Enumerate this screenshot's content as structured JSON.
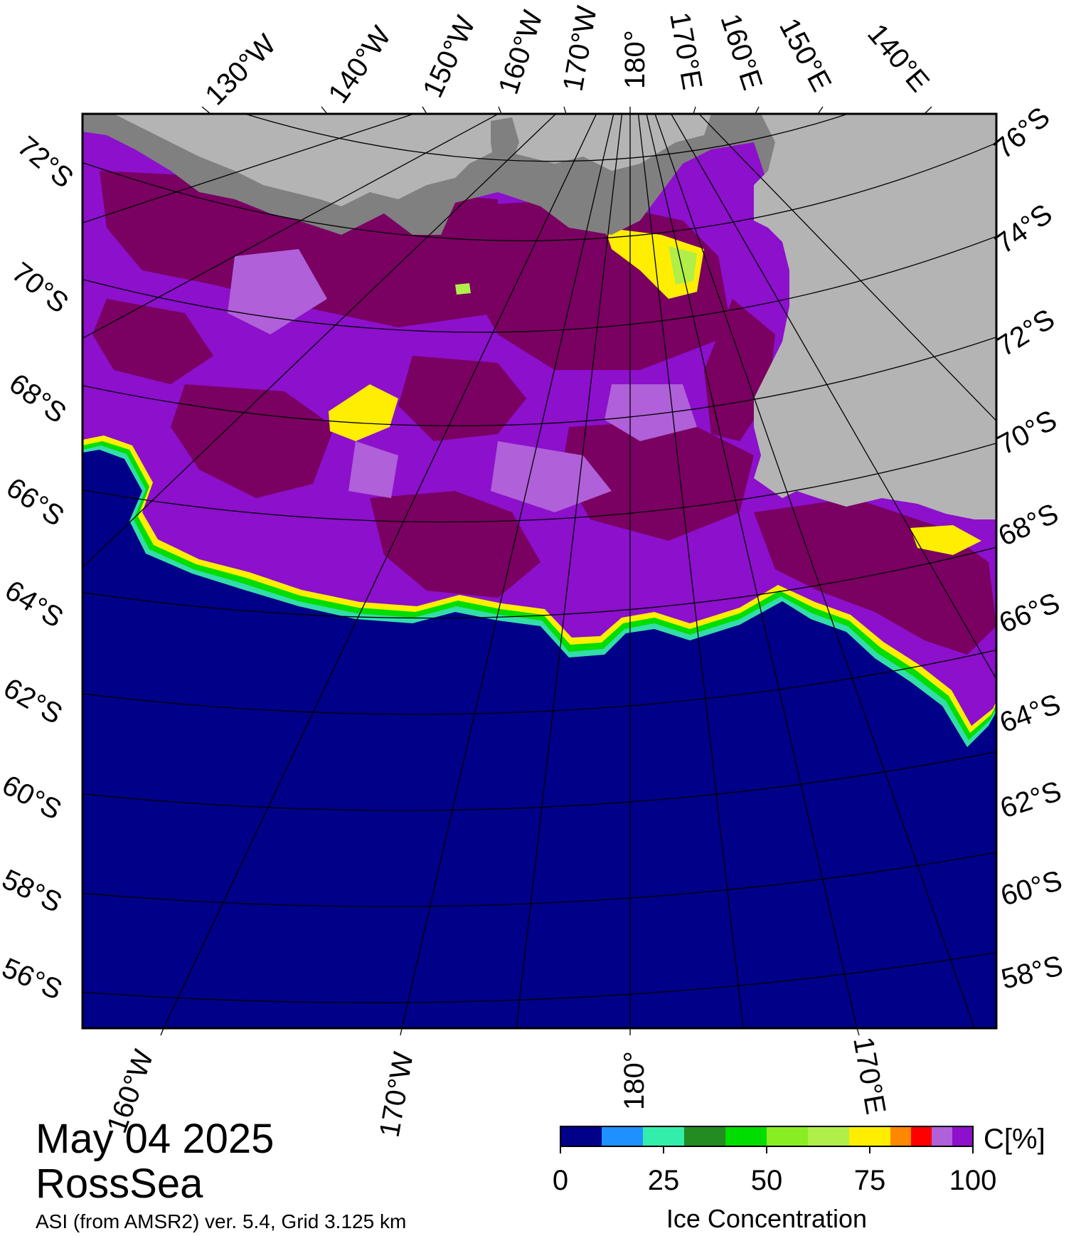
{
  "title": {
    "date": "May 04 2025",
    "region": "RossSea",
    "product": "ASI (from AMSR2) ver. 5.4,  Grid 3.125 km"
  },
  "map": {
    "top_longitude_labels": [
      "130°W",
      "140°W",
      "150°W",
      "160°W",
      "170°W",
      "180°",
      "170°E",
      "160°E",
      "150°E",
      "140°E"
    ],
    "bottom_longitude_labels": [
      "160°W",
      "170°W",
      "180°",
      "170°E"
    ],
    "left_latitude_labels": [
      "72°S",
      "70°S",
      "68°S",
      "66°S",
      "64°S",
      "62°S",
      "60°S",
      "58°S",
      "56°S"
    ],
    "right_latitude_labels": [
      "76°S",
      "74°S",
      "72°S",
      "70°S",
      "68°S",
      "66°S",
      "64°S",
      "62°S",
      "60°S",
      "58°S"
    ],
    "colors": {
      "open_water": "#000088",
      "land": "#b4b4b4",
      "ice_shelf": "#808080",
      "ice_100": "#7a0062",
      "ice_95": "#8c10cc",
      "ice_90": "#b060d8",
      "ice_75": "#ffee00",
      "ice_70": "#b0ee4a",
      "ice_50": "#00dd00",
      "ice_20": "#33ddaa"
    }
  },
  "colorbar": {
    "unit_label": "C[%]",
    "axis_label": "Ice Concentration",
    "ticks": [
      "0",
      "25",
      "50",
      "75",
      "100"
    ],
    "colors": [
      "#000088",
      "#1e90ff",
      "#33eeaa",
      "#228b22",
      "#00dd00",
      "#88ee22",
      "#b0ee4a",
      "#ffee00",
      "#ff8800",
      "#ff0000",
      "#b060d8",
      "#8c10cc"
    ]
  }
}
